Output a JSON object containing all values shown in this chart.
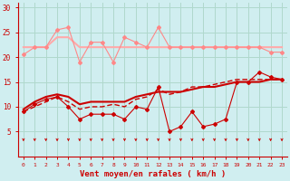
{
  "x": [
    0,
    1,
    2,
    3,
    4,
    5,
    6,
    7,
    8,
    9,
    10,
    11,
    12,
    13,
    14,
    15,
    16,
    17,
    18,
    19,
    20,
    21,
    22,
    23
  ],
  "line1": [
    20.5,
    22,
    22,
    25.5,
    26,
    19,
    23,
    23,
    19,
    24,
    23,
    22,
    26,
    22,
    22,
    22,
    22,
    22,
    22,
    22,
    22,
    22,
    21,
    21
  ],
  "line2": [
    22,
    22,
    22,
    24,
    24,
    22,
    22,
    22,
    22,
    22,
    22,
    22,
    22,
    22,
    22,
    22,
    22,
    22,
    22,
    22,
    22,
    22,
    22,
    22
  ],
  "line3": [
    9,
    10.5,
    11.5,
    12,
    10,
    7.5,
    8.5,
    8.5,
    8.5,
    7.5,
    10,
    9.5,
    14,
    5,
    6,
    9,
    6,
    6.5,
    7.5,
    15,
    15,
    17,
    16,
    15.5
  ],
  "line4": [
    9.5,
    11,
    12,
    12.5,
    12,
    10.5,
    11,
    11,
    11,
    11,
    12,
    12.5,
    13,
    13,
    13,
    13.5,
    14,
    14,
    14.5,
    15,
    15,
    15,
    15.5,
    15.5
  ],
  "line5": [
    9,
    10,
    11,
    12,
    11,
    9.5,
    10,
    10,
    10.5,
    10,
    11.5,
    12,
    13.5,
    12.5,
    13,
    14,
    14,
    14.5,
    15,
    15.5,
    15.5,
    15.5,
    15.5,
    15.5
  ],
  "bg_color": "#d0eef0",
  "grid_color": "#b0d8cc",
  "line1_color": "#ff8888",
  "line2_color": "#ffaaaa",
  "line3_color": "#cc0000",
  "line4_color": "#cc0000",
  "line5_color": "#cc0000",
  "axis_color": "#cc0000",
  "xlabel": "Vent moyen/en rafales ( km/h )",
  "ylim": [
    0,
    31
  ],
  "xlim": [
    0,
    23
  ],
  "yticks": [
    5,
    10,
    15,
    20,
    25,
    30
  ],
  "xticks": [
    0,
    1,
    2,
    3,
    4,
    5,
    6,
    7,
    8,
    9,
    10,
    11,
    12,
    13,
    14,
    15,
    16,
    17,
    18,
    19,
    20,
    21,
    22,
    23
  ]
}
